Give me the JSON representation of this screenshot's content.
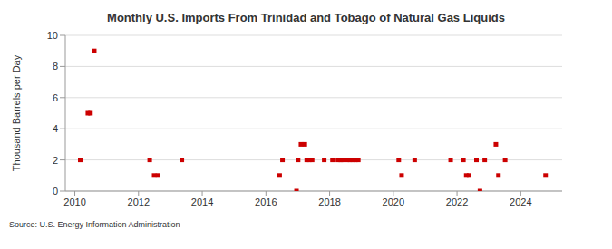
{
  "chart_data": {
    "type": "scatter",
    "title": "Monthly U.S. Imports From Trinidad and Tobago of Natural Gas Liquids",
    "y_label": "Thousand Barrels per Day",
    "source": "Source: U.S. Energy Information Administration",
    "x": [
      2010.17,
      2010.41,
      2010.49,
      2010.61,
      2012.35,
      2012.49,
      2012.61,
      2013.36,
      2016.43,
      2016.52,
      2016.96,
      2017.01,
      2017.1,
      2017.22,
      2017.28,
      2017.36,
      2017.45,
      2017.83,
      2018.09,
      2018.26,
      2018.35,
      2018.41,
      2018.55,
      2018.64,
      2018.72,
      2018.81,
      2018.9,
      2020.17,
      2020.26,
      2020.67,
      2021.8,
      2022.2,
      2022.29,
      2022.38,
      2022.61,
      2022.72,
      2022.87,
      2023.22,
      2023.3,
      2023.51,
      2024.78
    ],
    "values": [
      2,
      5,
      5,
      9,
      2,
      1,
      1,
      2,
      1,
      2,
      0,
      2,
      3,
      3,
      2,
      2,
      2,
      2,
      2,
      2,
      2,
      2,
      2,
      2,
      2,
      2,
      2,
      2,
      1,
      2,
      2,
      2,
      1,
      1,
      2,
      0,
      2,
      3,
      1,
      2,
      1
    ],
    "color": "#cc0000",
    "marker": "square",
    "xlim": [
      2009.7,
      2025.3
    ],
    "xticks": [
      2010,
      2012,
      2014,
      2016,
      2018,
      2020,
      2022,
      2024
    ],
    "ylim": [
      0,
      10
    ],
    "yticks": [
      0,
      2,
      4,
      6,
      8,
      10
    ],
    "grid": true
  }
}
